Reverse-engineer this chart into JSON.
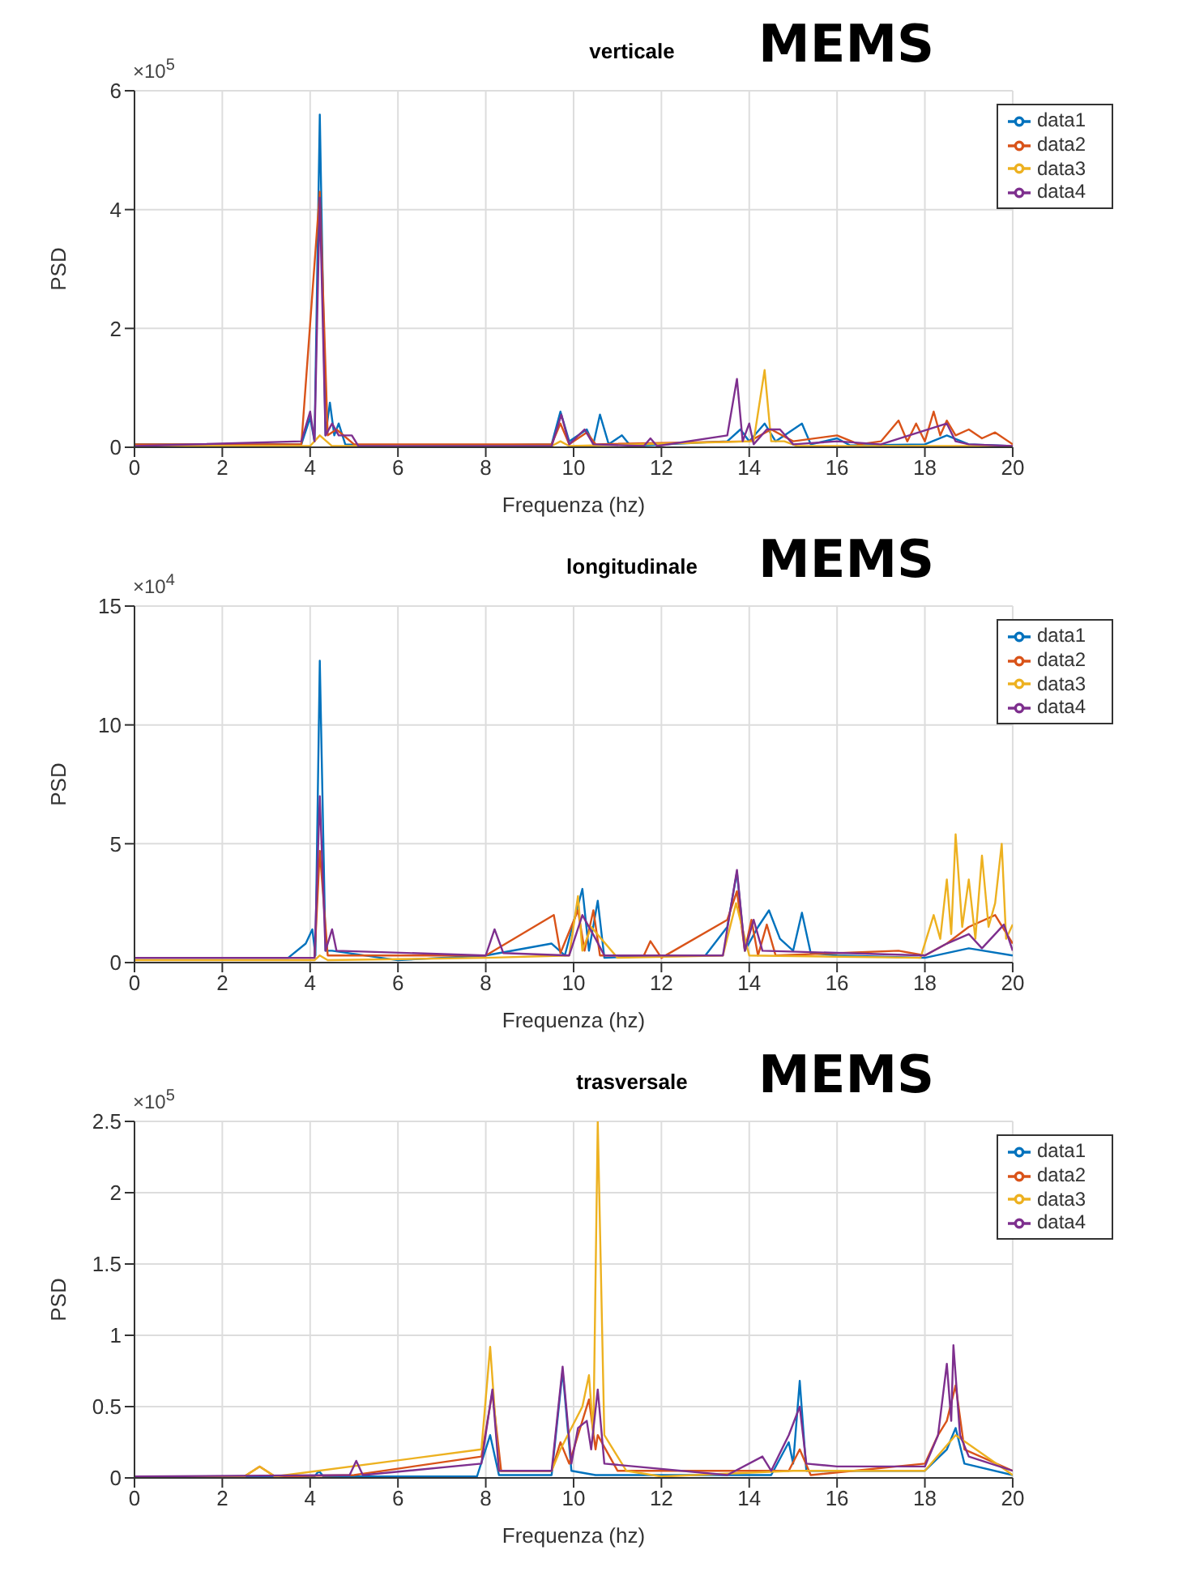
{
  "chart_data": [
    {
      "type": "line",
      "title": "verticale",
      "xlabel": "Frequenza (hz)",
      "ylabel": "PSD",
      "annotations": [
        "×10$^{5}$",
        "MEMS"
      ],
      "xlim": [
        0,
        20
      ],
      "xticks": [
        0,
        2,
        4,
        6,
        8,
        10,
        12,
        14,
        16,
        18,
        20
      ],
      "ylim": [
        0,
        6
      ],
      "yticks": [
        0,
        2,
        4,
        6
      ],
      "grid": true,
      "legend": "top right",
      "marker": "none",
      "line_style": "solid",
      "series": [
        {
          "name": "data1",
          "color": "#0072bd",
          "x": [
            0,
            3.8,
            4.0,
            4.1,
            4.22,
            4.35,
            4.45,
            4.55,
            4.65,
            4.8,
            6,
            9.5,
            9.7,
            9.9,
            10.3,
            10.45,
            10.6,
            10.8,
            11.1,
            11.3,
            13.5,
            13.8,
            14.0,
            14.35,
            14.6,
            15.2,
            15.4,
            16,
            16.3,
            18,
            18.5,
            19,
            20
          ],
          "values": [
            0.05,
            0.05,
            0.5,
            0.1,
            5.6,
            0.2,
            0.75,
            0.2,
            0.4,
            0.05,
            0.01,
            0.05,
            0.6,
            0.1,
            0.3,
            0.05,
            0.55,
            0.05,
            0.2,
            0.02,
            0.1,
            0.3,
            0.1,
            0.4,
            0.1,
            0.4,
            0.05,
            0.15,
            0.03,
            0.05,
            0.2,
            0.05,
            0.02
          ]
        },
        {
          "name": "data2",
          "color": "#d95319",
          "x": [
            0,
            3.8,
            4.22,
            4.4,
            4.6,
            5,
            9.5,
            9.7,
            9.9,
            10.3,
            10.5,
            14,
            14.5,
            15,
            16,
            16.5,
            17,
            17.4,
            17.6,
            17.8,
            18,
            18.2,
            18.35,
            18.5,
            18.7,
            19,
            19.3,
            19.6,
            20
          ],
          "values": [
            0.05,
            0.05,
            4.3,
            0.2,
            0.3,
            0.05,
            0.05,
            0.4,
            0.05,
            0.25,
            0.05,
            0.1,
            0.3,
            0.1,
            0.2,
            0.05,
            0.1,
            0.45,
            0.1,
            0.4,
            0.1,
            0.6,
            0.2,
            0.45,
            0.2,
            0.3,
            0.15,
            0.25,
            0.05
          ]
        },
        {
          "name": "data3",
          "color": "#edb120",
          "x": [
            0,
            4.0,
            4.22,
            4.5,
            9.5,
            9.7,
            9.9,
            14.1,
            14.35,
            14.5,
            14.8,
            15.1,
            20
          ],
          "values": [
            0.02,
            0.02,
            0.2,
            0.02,
            0.02,
            0.1,
            0.02,
            0.1,
            1.3,
            0.1,
            0.1,
            0.02,
            0.02
          ]
        },
        {
          "name": "data4",
          "color": "#7e2f8e",
          "x": [
            0,
            3.8,
            4.0,
            4.1,
            4.22,
            4.35,
            4.5,
            4.65,
            4.8,
            4.95,
            5.1,
            9.5,
            9.72,
            9.9,
            10.25,
            10.45,
            11.6,
            11.75,
            11.9,
            13.5,
            13.72,
            13.85,
            14.0,
            14.1,
            14.4,
            14.7,
            15,
            16,
            17,
            18.5,
            18.7,
            19,
            20
          ],
          "values": [
            0.02,
            0.1,
            0.6,
            0.1,
            4.2,
            0.2,
            0.4,
            0.2,
            0.2,
            0.2,
            0.02,
            0.02,
            0.55,
            0.05,
            0.3,
            0.05,
            0.02,
            0.15,
            0.02,
            0.2,
            1.15,
            0.1,
            0.4,
            0.05,
            0.3,
            0.3,
            0.05,
            0.1,
            0.05,
            0.4,
            0.1,
            0.05,
            0.02
          ]
        }
      ]
    },
    {
      "type": "line",
      "title": "longitudinale",
      "xlabel": "Frequenza (hz)",
      "ylabel": "PSD",
      "annotations": [
        "×10$^{4}$",
        "MEMS"
      ],
      "xlim": [
        0,
        20
      ],
      "xticks": [
        0,
        2,
        4,
        6,
        8,
        10,
        12,
        14,
        16,
        18,
        20
      ],
      "ylim": [
        0,
        15
      ],
      "yticks": [
        0,
        5,
        10,
        15
      ],
      "grid": true,
      "legend": "top right",
      "marker": "none",
      "line_style": "solid",
      "series": [
        {
          "name": "data1",
          "color": "#0072bd",
          "x": [
            0,
            3.5,
            3.9,
            4.05,
            4.12,
            4.22,
            4.35,
            4.5,
            6,
            8,
            9.5,
            9.8,
            10.2,
            10.35,
            10.55,
            10.7,
            12,
            13,
            13.5,
            13.72,
            13.9,
            14.2,
            14.45,
            14.7,
            15.0,
            15.2,
            15.4,
            16,
            18,
            19,
            20
          ],
          "values": [
            0.2,
            0.2,
            0.8,
            1.4,
            0.3,
            12.7,
            0.5,
            0.5,
            0.1,
            0.3,
            0.8,
            0.3,
            3.1,
            0.5,
            2.6,
            0.2,
            0.3,
            0.3,
            1.5,
            3.8,
            0.5,
            1.5,
            2.2,
            1.0,
            0.5,
            2.1,
            0.4,
            0.3,
            0.2,
            0.6,
            0.3
          ]
        },
        {
          "name": "data2",
          "color": "#d95319",
          "x": [
            0,
            4.1,
            4.22,
            4.4,
            8,
            9.55,
            9.7,
            10.1,
            10.25,
            10.45,
            10.6,
            11.6,
            11.75,
            12,
            13.5,
            13.72,
            13.9,
            14.05,
            14.2,
            14.4,
            14.6,
            17.4,
            18,
            18.5,
            19,
            19.6,
            20
          ],
          "values": [
            0.2,
            0.2,
            4.7,
            0.3,
            0.3,
            2.0,
            0.4,
            2.2,
            0.5,
            2.2,
            0.3,
            0.3,
            0.9,
            0.2,
            1.8,
            3.0,
            0.5,
            1.8,
            0.3,
            1.6,
            0.3,
            0.5,
            0.3,
            0.8,
            1.5,
            2.0,
            0.8
          ]
        },
        {
          "name": "data3",
          "color": "#edb120",
          "x": [
            0,
            4.1,
            4.22,
            4.4,
            8,
            9.9,
            10.1,
            10.2,
            10.4,
            11,
            13.4,
            13.7,
            14,
            17.9,
            18.2,
            18.35,
            18.5,
            18.6,
            18.7,
            18.85,
            19.0,
            19.15,
            19.3,
            19.45,
            19.6,
            19.75,
            19.85,
            20
          ],
          "values": [
            0.1,
            0.1,
            0.3,
            0.1,
            0.2,
            0.3,
            2.8,
            0.5,
            1.5,
            0.2,
            0.3,
            2.5,
            0.3,
            0.2,
            2.0,
            1.0,
            3.5,
            1.2,
            5.4,
            1.5,
            3.5,
            1.0,
            4.5,
            1.5,
            2.5,
            5.0,
            1.0,
            1.6
          ]
        },
        {
          "name": "data4",
          "color": "#7e2f8e",
          "x": [
            0,
            4.1,
            4.22,
            4.35,
            4.5,
            4.6,
            8,
            8.2,
            8.4,
            9.9,
            10.2,
            10.5,
            10.7,
            13.4,
            13.72,
            13.9,
            14.1,
            14.3,
            18,
            18.5,
            19,
            19.3,
            19.8,
            20
          ],
          "values": [
            0.2,
            0.2,
            7.0,
            0.5,
            1.4,
            0.5,
            0.3,
            1.4,
            0.4,
            0.3,
            2.0,
            1.0,
            0.3,
            0.3,
            3.9,
            0.5,
            1.8,
            0.5,
            0.3,
            0.8,
            1.2,
            0.6,
            1.6,
            0.5
          ]
        }
      ]
    },
    {
      "type": "line",
      "title": "trasversale",
      "xlabel": "Frequenza (hz)",
      "ylabel": "PSD",
      "annotations": [
        "×10$^{5}$",
        "MEMS"
      ],
      "xlim": [
        0,
        20
      ],
      "xticks": [
        0,
        2,
        4,
        6,
        8,
        10,
        12,
        14,
        16,
        18,
        20
      ],
      "ylim": [
        0,
        2.5
      ],
      "yticks": [
        0,
        0.5,
        1,
        1.5,
        2,
        2.5
      ],
      "grid": true,
      "legend": "top right",
      "marker": "none",
      "line_style": "solid",
      "series": [
        {
          "name": "data1",
          "color": "#0072bd",
          "x": [
            0,
            4.1,
            4.2,
            4.3,
            7.8,
            8.1,
            8.3,
            9.5,
            9.75,
            9.95,
            10.5,
            14.5,
            14.9,
            15.0,
            15.15,
            15.3,
            18,
            18.5,
            18.7,
            18.9,
            20
          ],
          "values": [
            0.01,
            0.01,
            0.05,
            0.01,
            0.01,
            0.3,
            0.02,
            0.02,
            0.75,
            0.05,
            0.02,
            0.02,
            0.25,
            0.1,
            0.68,
            0.05,
            0.05,
            0.2,
            0.35,
            0.1,
            0.02
          ]
        },
        {
          "name": "data2",
          "color": "#d95319",
          "x": [
            0,
            2.5,
            2.85,
            3.2,
            5,
            7.9,
            8.15,
            8.35,
            9.5,
            9.7,
            9.9,
            10.35,
            10.5,
            10.55,
            11,
            14.9,
            15.15,
            15.4,
            18,
            18.3,
            18.5,
            18.7,
            18.9,
            20
          ],
          "values": [
            0.01,
            0.01,
            0.08,
            0.01,
            0.02,
            0.15,
            0.6,
            0.05,
            0.05,
            0.25,
            0.1,
            0.55,
            0.2,
            0.3,
            0.05,
            0.05,
            0.2,
            0.02,
            0.1,
            0.3,
            0.4,
            0.65,
            0.2,
            0.05
          ]
        },
        {
          "name": "data3",
          "color": "#edb120",
          "x": [
            0,
            2.5,
            2.85,
            3.2,
            7.9,
            8.1,
            8.3,
            9.5,
            9.7,
            10.2,
            10.35,
            10.45,
            10.55,
            10.7,
            11.2,
            12,
            15,
            18,
            18.7,
            20
          ],
          "values": [
            0.01,
            0.01,
            0.08,
            0.01,
            0.2,
            0.92,
            0.05,
            0.05,
            0.2,
            0.5,
            0.72,
            0.3,
            2.5,
            0.3,
            0.05,
            0.01,
            0.05,
            0.05,
            0.3,
            0.02
          ]
        },
        {
          "name": "data4",
          "color": "#7e2f8e",
          "x": [
            0,
            4.9,
            5.05,
            5.2,
            7.9,
            8.15,
            8.3,
            9.5,
            9.75,
            9.95,
            10.1,
            10.3,
            10.4,
            10.55,
            10.7,
            13.5,
            14.3,
            14.5,
            14.9,
            15.15,
            15.3,
            16,
            17,
            18,
            18.3,
            18.5,
            18.6,
            18.65,
            18.8,
            19.0,
            20
          ],
          "values": [
            0.01,
            0.02,
            0.12,
            0.02,
            0.1,
            0.62,
            0.05,
            0.05,
            0.78,
            0.1,
            0.35,
            0.4,
            0.2,
            0.62,
            0.1,
            0.02,
            0.15,
            0.05,
            0.3,
            0.5,
            0.1,
            0.08,
            0.08,
            0.08,
            0.3,
            0.8,
            0.4,
            0.93,
            0.3,
            0.15,
            0.05
          ]
        }
      ]
    }
  ]
}
